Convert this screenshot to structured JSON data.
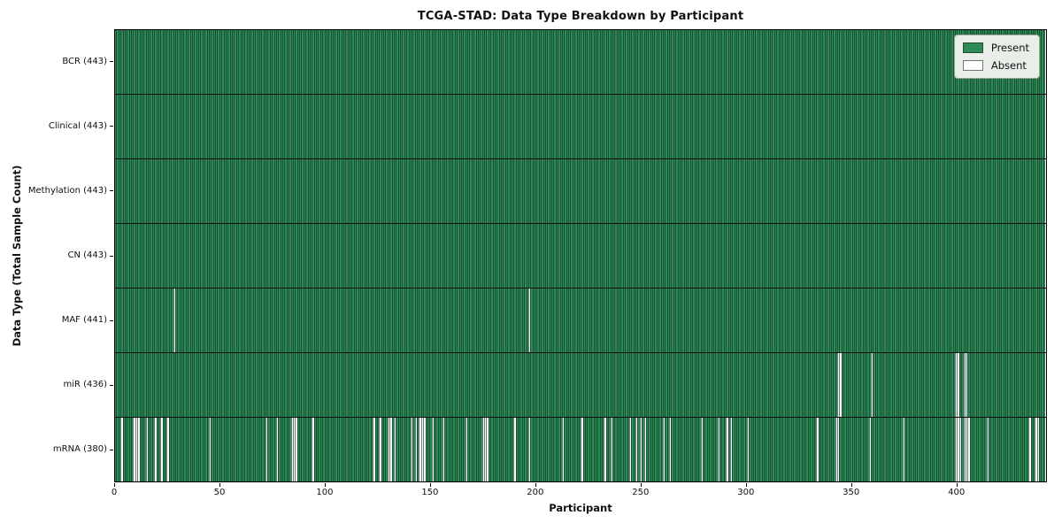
{
  "chart_data": {
    "type": "heatmap",
    "title": "TCGA-STAD: Data Type Breakdown by Participant",
    "xlabel": "Participant",
    "ylabel": "Data Type (Total Sample Count)",
    "x_ticks": [
      0,
      50,
      100,
      150,
      200,
      250,
      300,
      350,
      400
    ],
    "x_range": [
      0,
      443
    ],
    "n_participants": 443,
    "grid": false,
    "legend_position": "upper right",
    "colors": {
      "present": "#2e8b57",
      "absent": "#ffffff",
      "bar_edge": "#0a2a1a",
      "legend_bg": "#e9eee9"
    },
    "legend": [
      {
        "label": "Present",
        "color": "#2e8b57"
      },
      {
        "label": "Absent",
        "color": "#ffffff"
      }
    ],
    "rows": [
      {
        "label": "BCR (443)",
        "data_type": "BCR",
        "present_count": 443,
        "absent_participants": []
      },
      {
        "label": "Clinical (443)",
        "data_type": "Clinical",
        "present_count": 443,
        "absent_participants": []
      },
      {
        "label": "Methylation (443)",
        "data_type": "Methylation",
        "present_count": 443,
        "absent_participants": []
      },
      {
        "label": "CN (443)",
        "data_type": "CN",
        "present_count": 443,
        "absent_participants": []
      },
      {
        "label": "MAF (441)",
        "data_type": "MAF",
        "present_count": 441,
        "absent_participants": [
          28,
          197
        ]
      },
      {
        "label": "miR (436)",
        "data_type": "miR",
        "present_count": 436,
        "absent_participants": [
          344,
          345,
          360,
          400,
          401,
          404,
          405
        ]
      },
      {
        "label": "mRNA (380)",
        "data_type": "mRNA",
        "present_count": 380,
        "absent_participants": [
          3,
          9,
          10,
          11,
          15,
          19,
          22,
          25,
          45,
          72,
          77,
          84,
          85,
          86,
          94,
          123,
          126,
          130,
          131,
          133,
          141,
          143,
          145,
          146,
          147,
          151,
          156,
          167,
          175,
          176,
          177,
          190,
          197,
          213,
          222,
          233,
          236,
          245,
          248,
          250,
          252,
          261,
          264,
          279,
          287,
          291,
          293,
          301,
          334,
          343,
          344,
          359,
          375,
          400,
          401,
          402,
          404,
          405,
          406,
          415,
          435,
          438,
          439
        ]
      }
    ]
  }
}
